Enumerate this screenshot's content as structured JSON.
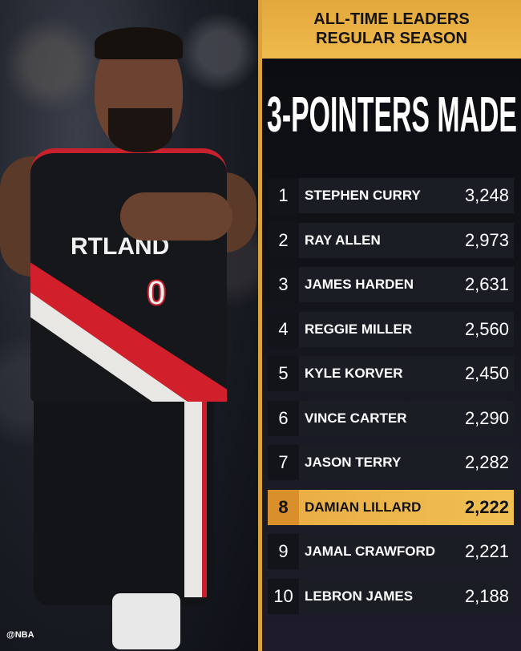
{
  "photo": {
    "jersey_text": "RTLAND",
    "jersey_number": "0",
    "watermark": "@NBA"
  },
  "header": {
    "line1": "ALL-TIME LEADERS",
    "line2": "REGULAR SEASON"
  },
  "title": "3-POINTERS MADE",
  "colors": {
    "gold": "#efba4c",
    "highlight_rank": "#d98f2a",
    "row_bg": "#1a1d24"
  },
  "leaders": [
    {
      "rank": "1",
      "name": "STEPHEN CURRY",
      "value": "3,248"
    },
    {
      "rank": "2",
      "name": "RAY ALLEN",
      "value": "2,973"
    },
    {
      "rank": "3",
      "name": "JAMES HARDEN",
      "value": "2,631"
    },
    {
      "rank": "4",
      "name": "REGGIE MILLER",
      "value": "2,560"
    },
    {
      "rank": "5",
      "name": "KYLE KORVER",
      "value": "2,450"
    },
    {
      "rank": "6",
      "name": "VINCE CARTER",
      "value": "2,290"
    },
    {
      "rank": "7",
      "name": "JASON TERRY",
      "value": "2,282"
    },
    {
      "rank": "8",
      "name": "DAMIAN LILLARD",
      "value": "2,222",
      "highlighted": true
    },
    {
      "rank": "9",
      "name": "JAMAL CRAWFORD",
      "value": "2,221"
    },
    {
      "rank": "10",
      "name": "LEBRON JAMES",
      "value": "2,188"
    }
  ]
}
